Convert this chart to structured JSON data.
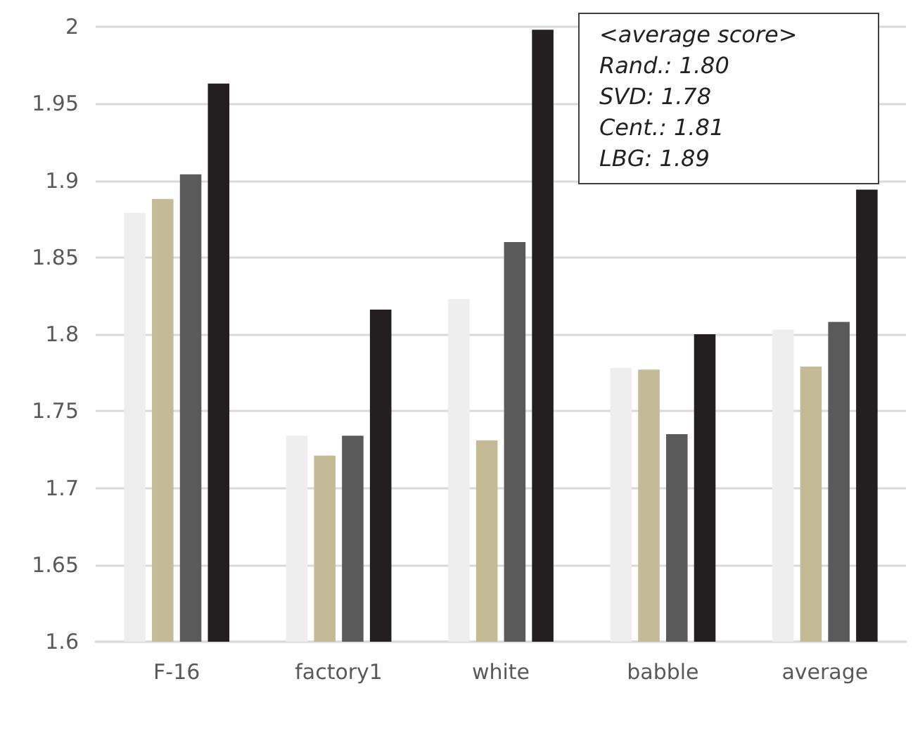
{
  "chart_data": {
    "type": "bar",
    "categories": [
      "F-16",
      "factory1",
      "white",
      "babble",
      "average"
    ],
    "series": [
      {
        "color": "#eeeeee",
        "values": [
          1.879,
          1.734,
          1.823,
          1.778,
          1.803
        ]
      },
      {
        "color": "#c4bb96",
        "values": [
          1.888,
          1.721,
          1.731,
          1.777,
          1.779
        ]
      },
      {
        "color": "#5a5a5a",
        "values": [
          1.904,
          1.734,
          1.86,
          1.735,
          1.808
        ]
      },
      {
        "color": "#231f20",
        "values": [
          1.963,
          1.816,
          1.998,
          1.8,
          1.894
        ]
      }
    ],
    "ylim": [
      1.6,
      2
    ],
    "yticks": [
      1.6,
      1.65,
      1.7,
      1.75,
      1.8,
      1.85,
      1.9,
      1.95,
      2
    ],
    "grid": "y",
    "annotations": [
      "<average score>",
      "Rand.: 1.80",
      "SVD: 1.78",
      "Cent.: 1.81",
      "LBG: 1.89"
    ]
  }
}
